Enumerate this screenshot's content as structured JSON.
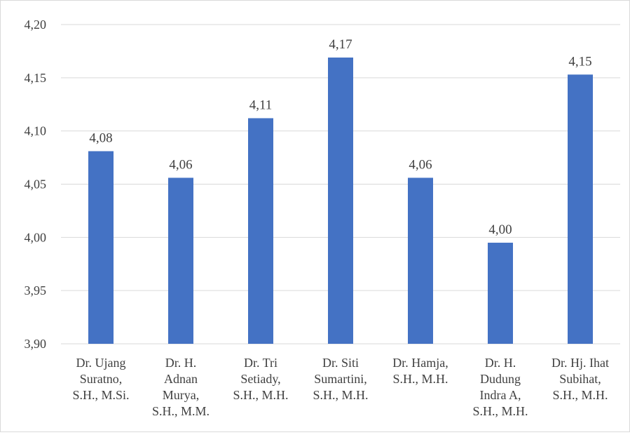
{
  "chart_data": {
    "type": "bar",
    "title": "",
    "xlabel": "",
    "ylabel": "",
    "categories": [
      [
        "Dr. Ujang",
        "Suratno,",
        "S.H., M.Si."
      ],
      [
        "Dr. H.",
        "Adnan",
        "Murya,",
        "S.H., M.M."
      ],
      [
        "Dr. Tri",
        "Setiady,",
        "S.H., M.H."
      ],
      [
        "Dr. Siti",
        "Sumartini,",
        "S.H., M.H."
      ],
      [
        "Dr. Hamja,",
        "S.H., M.H."
      ],
      [
        "Dr. H.",
        "Dudung",
        "Indra A,",
        "S.H., M.H."
      ],
      [
        "Dr. Hj. Ihat",
        "Subihat,",
        "S.H., M.H."
      ]
    ],
    "values": [
      4.081,
      4.056,
      4.112,
      4.169,
      4.056,
      3.995,
      4.153
    ],
    "data_labels": [
      "4,08",
      "4,06",
      "4,11",
      "4,17",
      "4,06",
      "4,00",
      "4,15"
    ],
    "ylim": [
      3.9,
      4.2
    ],
    "yticks": [
      {
        "value": 3.9,
        "label": "3,90"
      },
      {
        "value": 3.95,
        "label": "3,95"
      },
      {
        "value": 4.0,
        "label": "4,00"
      },
      {
        "value": 4.05,
        "label": "4,05"
      },
      {
        "value": 4.1,
        "label": "4,10"
      },
      {
        "value": 4.15,
        "label": "4,15"
      },
      {
        "value": 4.2,
        "label": "4,20"
      }
    ],
    "grid": true,
    "legend": "none",
    "bar_color": "#4472c4",
    "grid_color": "#d9d9d9"
  }
}
